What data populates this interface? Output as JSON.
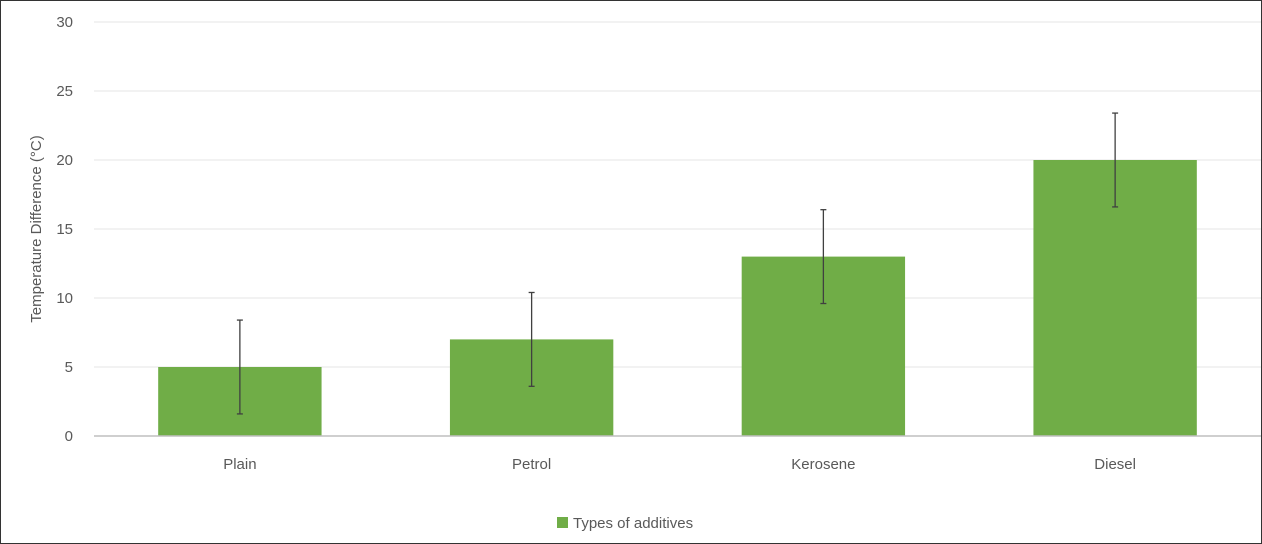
{
  "chart_data": {
    "type": "bar",
    "categories": [
      "Plain",
      "Petrol",
      "Kerosene",
      "Diesel"
    ],
    "series": [
      {
        "name": "Types of additives",
        "values": [
          5,
          7,
          13,
          20
        ],
        "error": [
          3.4,
          3.4,
          3.4,
          3.4
        ],
        "color": "#70AD47"
      }
    ],
    "xlabel": "",
    "ylabel": "Temperature Difference (°C)",
    "ylim": [
      0,
      30
    ],
    "yticks": [
      0,
      5,
      10,
      15,
      20,
      25,
      30
    ],
    "grid": true,
    "legend_position": "bottom",
    "colors": {
      "grid": "#E6E6E6",
      "axis": "#BFBFBF",
      "error_bar": "#404040",
      "text": "#595959"
    }
  }
}
